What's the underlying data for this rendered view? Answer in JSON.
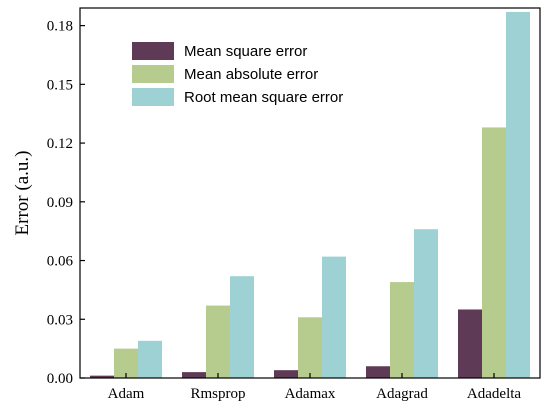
{
  "chart_data": {
    "type": "bar",
    "categories": [
      "Adam",
      "Rmsprop",
      "Adamax",
      "Adagrad",
      "Adadelta"
    ],
    "series": [
      {
        "name": "Mean square error",
        "color": "#5e3a56",
        "values": [
          0.0012,
          0.003,
          0.004,
          0.006,
          0.035
        ]
      },
      {
        "name": "Mean absolute error",
        "color": "#b5cc8e",
        "values": [
          0.015,
          0.037,
          0.031,
          0.049,
          0.128
        ]
      },
      {
        "name": "Root mean square error",
        "color": "#9ed1d4",
        "values": [
          0.019,
          0.052,
          0.062,
          0.076,
          0.187
        ]
      }
    ],
    "ylabel": "Error (a.u.)",
    "xlabel": "",
    "ylim": [
      0,
      0.189
    ],
    "yticks": [
      "0.00",
      "0.03",
      "0.06",
      "0.09",
      "0.12",
      "0.15",
      "0.18"
    ],
    "legend_position": "top-left",
    "grid": false
  }
}
